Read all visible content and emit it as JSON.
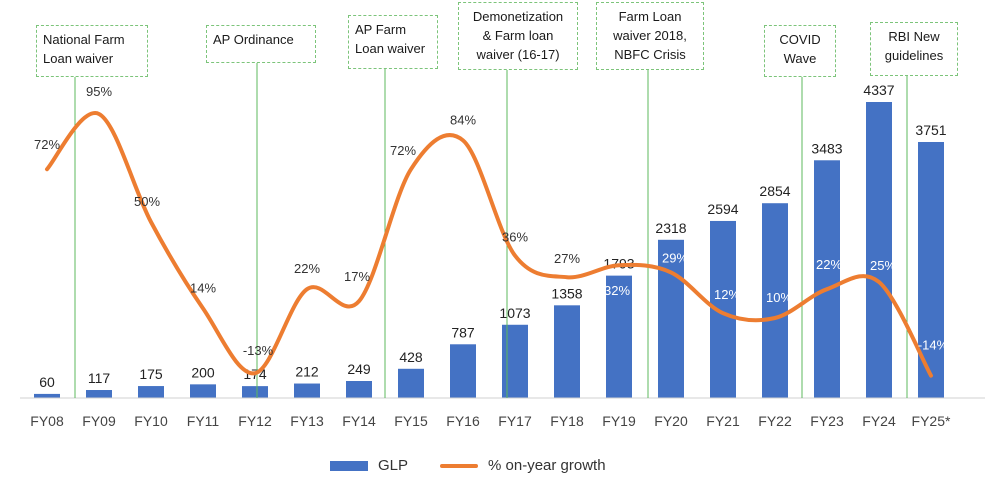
{
  "chart_data": {
    "type": "bar",
    "categories": [
      "FY08",
      "FY09",
      "FY10",
      "FY11",
      "FY12",
      "FY13",
      "FY14",
      "FY15",
      "FY16",
      "FY17",
      "FY18",
      "FY19",
      "FY20",
      "FY21",
      "FY22",
      "FY23",
      "FY24",
      "FY25*"
    ],
    "series": [
      {
        "name": "GLP",
        "type": "bar",
        "values": [
          60,
          117,
          175,
          200,
          174,
          212,
          249,
          428,
          787,
          1073,
          1358,
          1793,
          2318,
          2594,
          2854,
          3483,
          4337,
          3751
        ],
        "color": "#4472c4"
      },
      {
        "name": "% on-year growth",
        "type": "line",
        "smooth": true,
        "values": [
          72,
          95,
          50,
          14,
          -13,
          22,
          17,
          72,
          84,
          36,
          27,
          32,
          29,
          12,
          10,
          22,
          25,
          -14
        ],
        "labels": [
          "72%",
          "95%",
          "50%",
          "14%",
          "-13%",
          "22%",
          "17%",
          "72%",
          "84%",
          "36%",
          "27%",
          "32%",
          "29%",
          "12%",
          "10%",
          "22%",
          "25%",
          "-14%"
        ],
        "color": "#ed7d31"
      }
    ],
    "annotations": [
      {
        "text": "National Farm Loan waiver",
        "lines": [
          "National Farm",
          "Loan waiver"
        ],
        "category": "FY09"
      },
      {
        "text": "AP Ordinance",
        "lines": [
          "AP Ordinance"
        ],
        "category": "FY12"
      },
      {
        "text": "AP Farm Loan waiver",
        "lines": [
          "AP Farm",
          "Loan waiver"
        ],
        "category": "FY15"
      },
      {
        "text": "Demonetization & Farm loan waiver (16-17)",
        "lines": [
          "Demonetization",
          "& Farm loan",
          "waiver (16-17)"
        ],
        "category": "FY17"
      },
      {
        "text": "Farm Loan waiver 2018, NBFC Crisis",
        "lines": [
          "Farm Loan",
          "waiver 2018,",
          "NBFC Crisis"
        ],
        "category": "FY20"
      },
      {
        "text": "COVID Wave",
        "lines": [
          "COVID",
          "Wave"
        ],
        "category": "FY23"
      },
      {
        "text": "RBI New guidelines",
        "lines": [
          "RBI New",
          "guidelines"
        ],
        "category": "FY25*"
      }
    ],
    "legend": {
      "position": "bottom",
      "items": [
        "GLP",
        "% on-year growth"
      ]
    },
    "grid": false
  },
  "legend": {
    "bar_label": "GLP",
    "line_label": "% on-year growth"
  }
}
